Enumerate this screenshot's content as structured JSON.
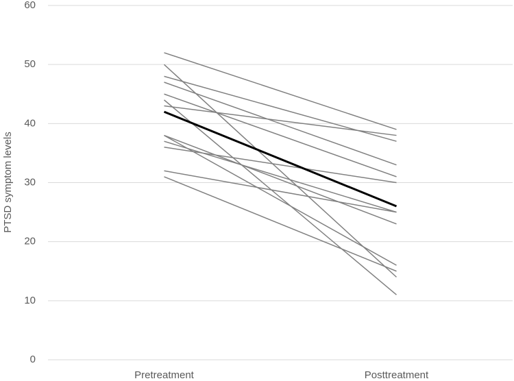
{
  "chart_data": {
    "type": "line",
    "ylabel": "PTSD symptom levels",
    "categories": [
      "Pretreatment",
      "Posttreatment"
    ],
    "ylim": [
      0,
      60
    ],
    "yticks": [
      0,
      10,
      20,
      30,
      40,
      50,
      60
    ],
    "grid": true,
    "series": [
      {
        "color": "#808080",
        "values": [
          52,
          39
        ]
      },
      {
        "color": "#808080",
        "values": [
          50,
          14
        ]
      },
      {
        "color": "#808080",
        "values": [
          48,
          37
        ]
      },
      {
        "color": "#808080",
        "values": [
          47,
          33
        ]
      },
      {
        "color": "#808080",
        "values": [
          45,
          31
        ]
      },
      {
        "color": "#808080",
        "values": [
          44,
          11
        ]
      },
      {
        "color": "#808080",
        "values": [
          43,
          38
        ]
      },
      {
        "color": "#808080",
        "values": [
          38,
          23
        ]
      },
      {
        "color": "#808080",
        "values": [
          38,
          16
        ]
      },
      {
        "color": "#808080",
        "values": [
          37,
          25
        ]
      },
      {
        "color": "#808080",
        "values": [
          36,
          30
        ]
      },
      {
        "color": "#808080",
        "values": [
          32,
          25
        ]
      },
      {
        "color": "#808080",
        "values": [
          31,
          15
        ]
      },
      {
        "color": "#000000",
        "linewidth": 3,
        "values": [
          42,
          26
        ]
      }
    ]
  }
}
